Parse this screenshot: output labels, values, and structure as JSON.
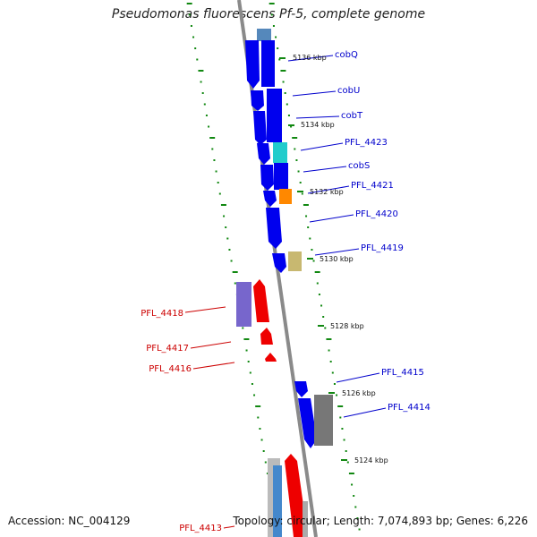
{
  "title": "Pseudomonas fluorescens Pf-5, complete genome",
  "footer": {
    "accession": "Accession: NC_004129",
    "stats": "Topology: circular; Length: 7,074,893 bp; Genes: 6,226"
  },
  "colors": {
    "forward_label": "#0000cc",
    "reverse_label": "#cc0000",
    "tick": "#118811",
    "backbone": "#8a8a8a",
    "gene_blue": "#0000ee",
    "gene_red": "#ee0000",
    "gene_orange": "#ff8800",
    "gene_cyan": "#22cccc",
    "gene_khaki": "#c8b870",
    "gene_purple": "#7766cc",
    "gene_gray": "#777777"
  },
  "scale_labels": [
    {
      "id": "5136",
      "text": "5136 kbp"
    },
    {
      "id": "5134",
      "text": "5134 kbp"
    },
    {
      "id": "5132",
      "text": "5132 kbp"
    },
    {
      "id": "5130",
      "text": "5130 kbp"
    },
    {
      "id": "5128",
      "text": "5128 kbp"
    },
    {
      "id": "5126",
      "text": "5126 kbp"
    },
    {
      "id": "5124",
      "text": "5124 kbp"
    }
  ],
  "forward_genes": [
    "cobQ",
    "cobU",
    "cobT",
    "PFL_4423",
    "cobS",
    "PFL_4421",
    "PFL_4420",
    "PFL_4419",
    "PFL_4415",
    "PFL_4414"
  ],
  "reverse_genes": [
    "PFL_4418",
    "PFL_4417",
    "PFL_4416",
    "PFL_4413"
  ]
}
